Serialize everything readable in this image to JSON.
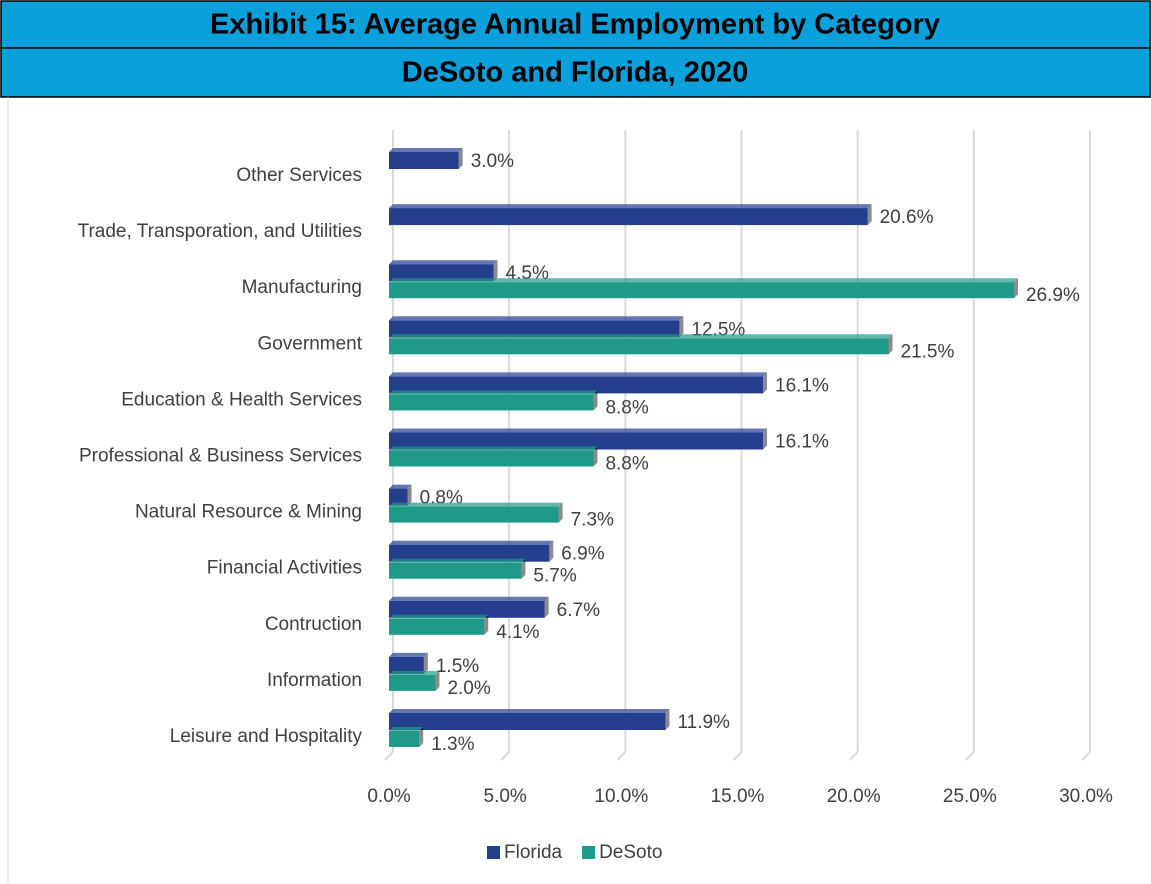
{
  "chart_data": {
    "type": "bar",
    "orientation": "horizontal",
    "title": "Exhibit 15: Average Annual Employment by Category",
    "subtitle": "DeSoto and Florida, 2020",
    "categories": [
      "Other Services",
      "Trade, Transporation, and Utilities",
      "Manufacturing",
      "Government",
      "Education & Health Services",
      "Professional & Business Services",
      "Natural Resource & Mining",
      "Financial Activities",
      "Contruction",
      "Information",
      "Leisure and Hospitality"
    ],
    "series": [
      {
        "name": "Florida",
        "color": "#253f8f",
        "values": [
          3.0,
          20.6,
          4.5,
          12.5,
          16.1,
          16.1,
          0.8,
          6.9,
          6.7,
          1.5,
          11.9
        ],
        "value_labels": [
          "3.0%",
          "20.6%",
          "4.5%",
          "12.5%",
          "16.1%",
          "16.1%",
          "0.8%",
          "6.9%",
          "6.7%",
          "1.5%",
          "11.9%"
        ]
      },
      {
        "name": "DeSoto",
        "color": "#1f9a88",
        "values": [
          null,
          null,
          26.9,
          21.5,
          8.8,
          8.8,
          7.3,
          5.7,
          4.1,
          2.0,
          1.3
        ],
        "value_labels": [
          null,
          null,
          "26.9%",
          "21.5%",
          "8.8%",
          "8.8%",
          "7.3%",
          "5.7%",
          "4.1%",
          "2.0%",
          "1.3%"
        ]
      }
    ],
    "xlim": [
      0,
      30
    ],
    "xticks": [
      {
        "value": 0,
        "label": "0.0%"
      },
      {
        "value": 5,
        "label": "5.0%"
      },
      {
        "value": 10,
        "label": "10.0%"
      },
      {
        "value": 15,
        "label": "15.0%"
      },
      {
        "value": 20,
        "label": "20.0%"
      },
      {
        "value": 25,
        "label": "25.0%"
      },
      {
        "value": 30,
        "label": "30.0%"
      }
    ],
    "grid": true,
    "legend": "bottom"
  }
}
